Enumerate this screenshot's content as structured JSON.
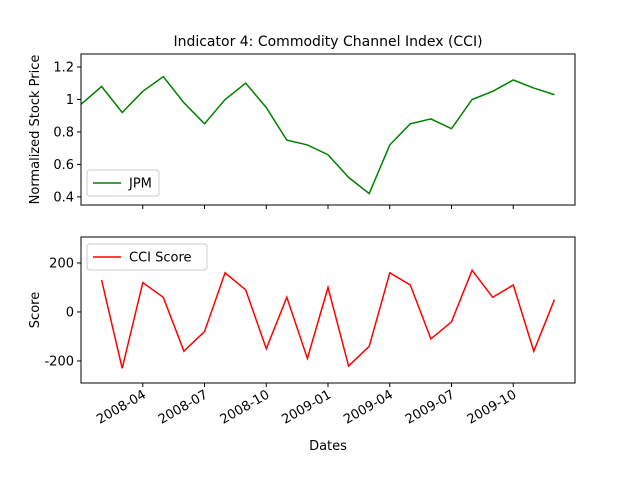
{
  "chart_data": [
    {
      "type": "line",
      "title": "Indicator 4: Commodity Channel Index (CCI)",
      "ylabel": "Normalized Stock Price",
      "x": [
        "2008-01",
        "2008-02",
        "2008-03",
        "2008-04",
        "2008-05",
        "2008-06",
        "2008-07",
        "2008-08",
        "2008-09",
        "2008-10",
        "2008-11",
        "2008-12",
        "2009-01",
        "2009-02",
        "2009-03",
        "2009-04",
        "2009-05",
        "2009-06",
        "2009-07",
        "2009-08",
        "2009-09",
        "2009-10",
        "2009-11",
        "2009-12"
      ],
      "series": [
        {
          "name": "JPM",
          "color": "#008000",
          "values": [
            0.97,
            1.08,
            0.92,
            1.05,
            1.14,
            0.98,
            0.85,
            1.0,
            1.1,
            0.95,
            0.75,
            0.72,
            0.66,
            0.52,
            0.42,
            0.72,
            0.85,
            0.88,
            0.82,
            1.0,
            1.05,
            1.12,
            1.07,
            1.03
          ]
        }
      ],
      "xlim": [
        "2008-01",
        "2010-01"
      ],
      "xticks": [
        "2008-04",
        "2008-07",
        "2008-10",
        "2009-01",
        "2009-04",
        "2009-07",
        "2009-10"
      ],
      "ylim": [
        0.35,
        1.28
      ],
      "yticks": [
        0.4,
        0.6,
        0.8,
        1.0,
        1.2
      ],
      "legend": "lower left"
    },
    {
      "type": "line",
      "xlabel": "Dates",
      "ylabel": "Score",
      "x": [
        "2008-02",
        "2008-03",
        "2008-04",
        "2008-05",
        "2008-06",
        "2008-07",
        "2008-08",
        "2008-09",
        "2008-10",
        "2008-11",
        "2008-12",
        "2009-01",
        "2009-02",
        "2009-03",
        "2009-04",
        "2009-05",
        "2009-06",
        "2009-07",
        "2009-08",
        "2009-09",
        "2009-10",
        "2009-11",
        "2009-12"
      ],
      "series": [
        {
          "name": "CCI Score",
          "color": "#ff0000",
          "values": [
            130,
            -230,
            120,
            60,
            -160,
            -80,
            160,
            90,
            -150,
            60,
            -190,
            100,
            -220,
            -140,
            160,
            110,
            -110,
            -40,
            170,
            60,
            110,
            -160,
            50
          ]
        }
      ],
      "xlim": [
        "2008-01",
        "2010-01"
      ],
      "xticks": [
        "2008-04",
        "2008-07",
        "2008-10",
        "2009-01",
        "2009-04",
        "2009-07",
        "2009-10"
      ],
      "ylim": [
        -290,
        306
      ],
      "yticks": [
        -200,
        0,
        200
      ],
      "legend": "upper left"
    }
  ]
}
